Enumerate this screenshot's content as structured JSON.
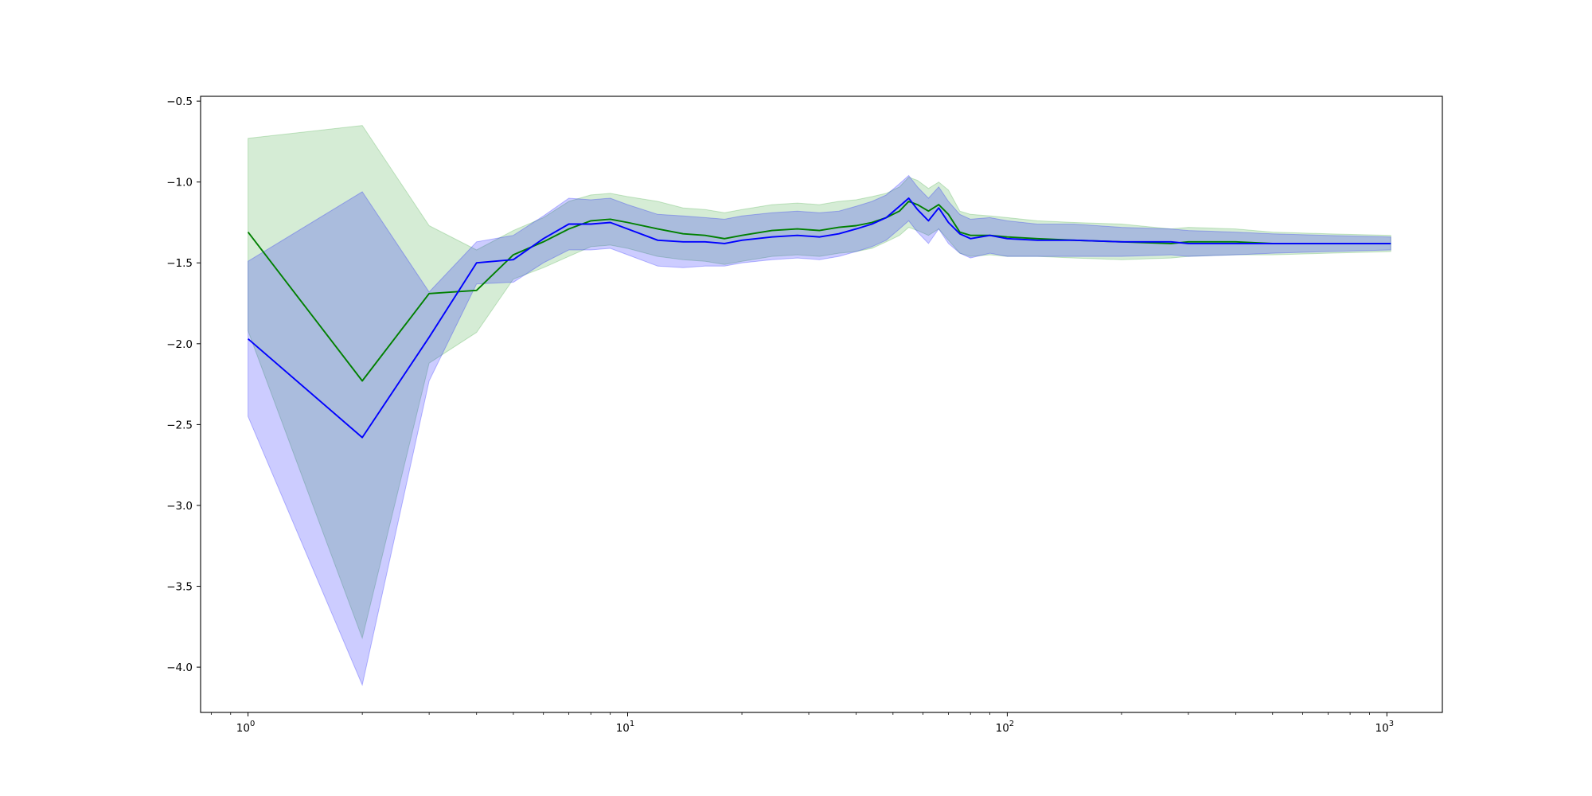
{
  "chart_data": {
    "type": "line",
    "title": "",
    "xlabel": "",
    "ylabel": "",
    "xscale": "log",
    "xlim": [
      0.75,
      1400
    ],
    "ylim": [
      -4.28,
      -0.47
    ],
    "grid": false,
    "legend": "none",
    "x_ticks": [
      {
        "value": 1,
        "base": "10",
        "exp": "0"
      },
      {
        "value": 10,
        "base": "10",
        "exp": "1"
      },
      {
        "value": 100,
        "base": "10",
        "exp": "2"
      },
      {
        "value": 1000,
        "base": "10",
        "exp": "3"
      }
    ],
    "y_ticks": [
      {
        "value": -0.5,
        "label": "−0.5"
      },
      {
        "value": -1.0,
        "label": "−1.0"
      },
      {
        "value": -1.5,
        "label": "−1.5"
      },
      {
        "value": -2.0,
        "label": "−2.0"
      },
      {
        "value": -2.5,
        "label": "−2.5"
      },
      {
        "value": -3.0,
        "label": "−3.0"
      },
      {
        "value": -3.5,
        "label": "−3.5"
      },
      {
        "value": -4.0,
        "label": "−4.0"
      }
    ],
    "series": [
      {
        "color": "#008000",
        "band_color": "#2ca02c",
        "points": [
          [
            1,
            -1.31,
            -0.73,
            -1.92
          ],
          [
            2,
            -2.23,
            -0.65,
            -3.82
          ],
          [
            3,
            -1.69,
            -1.27,
            -2.12
          ],
          [
            4,
            -1.67,
            -1.42,
            -1.93
          ],
          [
            5,
            -1.45,
            -1.3,
            -1.6
          ],
          [
            6,
            -1.37,
            -1.22,
            -1.53
          ],
          [
            7,
            -1.29,
            -1.12,
            -1.46
          ],
          [
            8,
            -1.24,
            -1.08,
            -1.4
          ],
          [
            9,
            -1.23,
            -1.07,
            -1.39
          ],
          [
            10,
            -1.25,
            -1.09,
            -1.41
          ],
          [
            12,
            -1.29,
            -1.12,
            -1.46
          ],
          [
            14,
            -1.32,
            -1.16,
            -1.48
          ],
          [
            16,
            -1.33,
            -1.17,
            -1.49
          ],
          [
            18,
            -1.35,
            -1.19,
            -1.51
          ],
          [
            20,
            -1.33,
            -1.17,
            -1.49
          ],
          [
            24,
            -1.3,
            -1.14,
            -1.46
          ],
          [
            28,
            -1.29,
            -1.13,
            -1.45
          ],
          [
            32,
            -1.3,
            -1.14,
            -1.46
          ],
          [
            36,
            -1.28,
            -1.12,
            -1.44
          ],
          [
            40,
            -1.27,
            -1.11,
            -1.43
          ],
          [
            44,
            -1.25,
            -1.09,
            -1.41
          ],
          [
            48,
            -1.22,
            -1.07,
            -1.37
          ],
          [
            52,
            -1.18,
            -1.03,
            -1.33
          ],
          [
            55,
            -1.12,
            -0.97,
            -1.28
          ],
          [
            58,
            -1.14,
            -0.99,
            -1.3
          ],
          [
            62,
            -1.18,
            -1.04,
            -1.33
          ],
          [
            66,
            -1.14,
            -1.0,
            -1.29
          ],
          [
            70,
            -1.2,
            -1.05,
            -1.36
          ],
          [
            75,
            -1.31,
            -1.18,
            -1.44
          ],
          [
            80,
            -1.33,
            -1.2,
            -1.46
          ],
          [
            90,
            -1.33,
            -1.21,
            -1.45
          ],
          [
            100,
            -1.34,
            -1.22,
            -1.46
          ],
          [
            120,
            -1.35,
            -1.24,
            -1.46
          ],
          [
            150,
            -1.36,
            -1.25,
            -1.47
          ],
          [
            200,
            -1.37,
            -1.26,
            -1.48
          ],
          [
            270,
            -1.38,
            -1.29,
            -1.47
          ],
          [
            300,
            -1.37,
            -1.28,
            -1.46
          ],
          [
            400,
            -1.37,
            -1.29,
            -1.45
          ],
          [
            500,
            -1.38,
            -1.31,
            -1.45
          ],
          [
            700,
            -1.38,
            -1.32,
            -1.44
          ],
          [
            1024,
            -1.38,
            -1.33,
            -1.43
          ]
        ]
      },
      {
        "color": "#0000ff",
        "band_color": "#0000ff",
        "points": [
          [
            1,
            -1.97,
            -1.49,
            -2.45
          ],
          [
            2,
            -2.58,
            -1.06,
            -4.11
          ],
          [
            3,
            -1.96,
            -1.68,
            -2.23
          ],
          [
            4,
            -1.5,
            -1.37,
            -1.63
          ],
          [
            5,
            -1.48,
            -1.33,
            -1.62
          ],
          [
            6,
            -1.35,
            -1.21,
            -1.5
          ],
          [
            7,
            -1.26,
            -1.1,
            -1.42
          ],
          [
            8,
            -1.26,
            -1.11,
            -1.42
          ],
          [
            9,
            -1.25,
            -1.1,
            -1.41
          ],
          [
            10,
            -1.29,
            -1.14,
            -1.45
          ],
          [
            12,
            -1.36,
            -1.2,
            -1.52
          ],
          [
            14,
            -1.37,
            -1.21,
            -1.53
          ],
          [
            16,
            -1.37,
            -1.22,
            -1.52
          ],
          [
            18,
            -1.38,
            -1.23,
            -1.52
          ],
          [
            20,
            -1.36,
            -1.21,
            -1.5
          ],
          [
            24,
            -1.34,
            -1.19,
            -1.48
          ],
          [
            28,
            -1.33,
            -1.18,
            -1.47
          ],
          [
            32,
            -1.34,
            -1.19,
            -1.48
          ],
          [
            36,
            -1.32,
            -1.18,
            -1.46
          ],
          [
            40,
            -1.29,
            -1.15,
            -1.43
          ],
          [
            44,
            -1.26,
            -1.12,
            -1.4
          ],
          [
            48,
            -1.22,
            -1.08,
            -1.36
          ],
          [
            52,
            -1.15,
            -1.01,
            -1.29
          ],
          [
            55,
            -1.1,
            -0.96,
            -1.24
          ],
          [
            58,
            -1.17,
            -1.03,
            -1.31
          ],
          [
            62,
            -1.24,
            -1.1,
            -1.38
          ],
          [
            66,
            -1.16,
            -1.03,
            -1.29
          ],
          [
            70,
            -1.25,
            -1.12,
            -1.38
          ],
          [
            75,
            -1.32,
            -1.2,
            -1.44
          ],
          [
            80,
            -1.35,
            -1.23,
            -1.47
          ],
          [
            90,
            -1.33,
            -1.22,
            -1.44
          ],
          [
            100,
            -1.35,
            -1.24,
            -1.46
          ],
          [
            120,
            -1.36,
            -1.26,
            -1.46
          ],
          [
            150,
            -1.36,
            -1.26,
            -1.46
          ],
          [
            200,
            -1.37,
            -1.28,
            -1.46
          ],
          [
            270,
            -1.37,
            -1.29,
            -1.45
          ],
          [
            300,
            -1.38,
            -1.3,
            -1.46
          ],
          [
            400,
            -1.38,
            -1.31,
            -1.45
          ],
          [
            500,
            -1.38,
            -1.32,
            -1.44
          ],
          [
            700,
            -1.38,
            -1.33,
            -1.43
          ],
          [
            1024,
            -1.38,
            -1.34,
            -1.42
          ]
        ]
      }
    ]
  }
}
